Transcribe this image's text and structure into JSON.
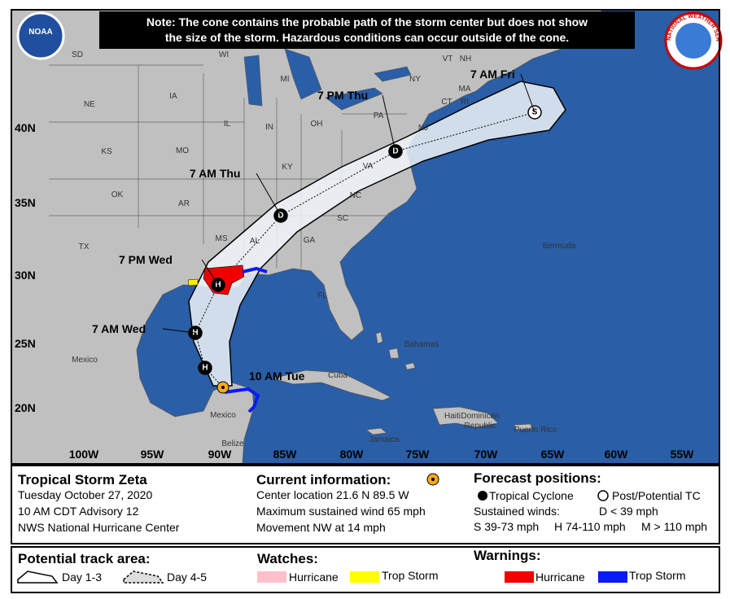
{
  "note": [
    "Note: The cone contains the probable path of the storm center but does not show",
    "the size of the storm. Hazardous conditions can occur outside of the cone."
  ],
  "logos": {
    "noaa": "NOAA",
    "nws": "NATIONAL WEATHER SERVICE"
  },
  "map": {
    "lon_labels": [
      "100W",
      "95W",
      "90W",
      "85W",
      "80W",
      "75W",
      "70W",
      "65W",
      "60W",
      "55W"
    ],
    "lat_labels": [
      "40N",
      "35N",
      "30N",
      "25N",
      "20N"
    ],
    "region_labels": [
      "SD",
      "WI",
      "MI",
      "NY",
      "VT",
      "NH",
      "MA",
      "CT",
      "RI",
      "NE",
      "IA",
      "IL",
      "IN",
      "OH",
      "PA",
      "NJ",
      "KS",
      "MO",
      "KY",
      "VA",
      "OK",
      "AR",
      "NC",
      "SC",
      "MS",
      "AL",
      "GA",
      "TX",
      "FL",
      "Bermuda",
      "Bahamas",
      "Cuba",
      "Jamaica",
      "Haiti",
      "Dominican",
      "Republic",
      "Puerto Rico",
      "Mexico",
      "Mexico",
      "Belize"
    ],
    "current": {
      "label": "10 AM Tue"
    },
    "forecast_points": [
      {
        "marker": "H"
      },
      {
        "label": "7 AM Wed",
        "marker": "H"
      },
      {
        "label": "7 PM Wed",
        "marker": "H"
      },
      {
        "label": "7 AM Thu",
        "marker": "D"
      },
      {
        "label": "7 PM Thu",
        "marker": "D"
      },
      {
        "label": "7 AM Fri",
        "marker": "S"
      }
    ]
  },
  "storm": {
    "name": "Tropical Storm Zeta",
    "date": "Tuesday October 27, 2020",
    "advisory": "10 AM CDT Advisory 12",
    "source": "NWS National Hurricane Center"
  },
  "current": {
    "title": "Current information:",
    "lines": [
      "Center location 21.6 N 89.5 W",
      "Maximum sustained wind 65 mph",
      "Movement NW at 14 mph"
    ]
  },
  "forecast": {
    "title": "Forecast positions:",
    "tc": "Tropical Cyclone",
    "post": "Post/Potential TC",
    "winds_title": "Sustained winds:",
    "d": "D < 39 mph",
    "s": "S 39-73 mph",
    "h": "H 74-110 mph",
    "m": "M > 110 mph"
  },
  "track": {
    "title": "Potential track area:",
    "day13": "Day 1-3",
    "day45": "Day 4-5"
  },
  "watches": {
    "title": "Watches:",
    "hurricane": "Hurricane",
    "trop": "Trop Storm"
  },
  "warnings": {
    "title": "Warnings:",
    "hurricane": "Hurricane",
    "trop": "Trop Storm"
  }
}
